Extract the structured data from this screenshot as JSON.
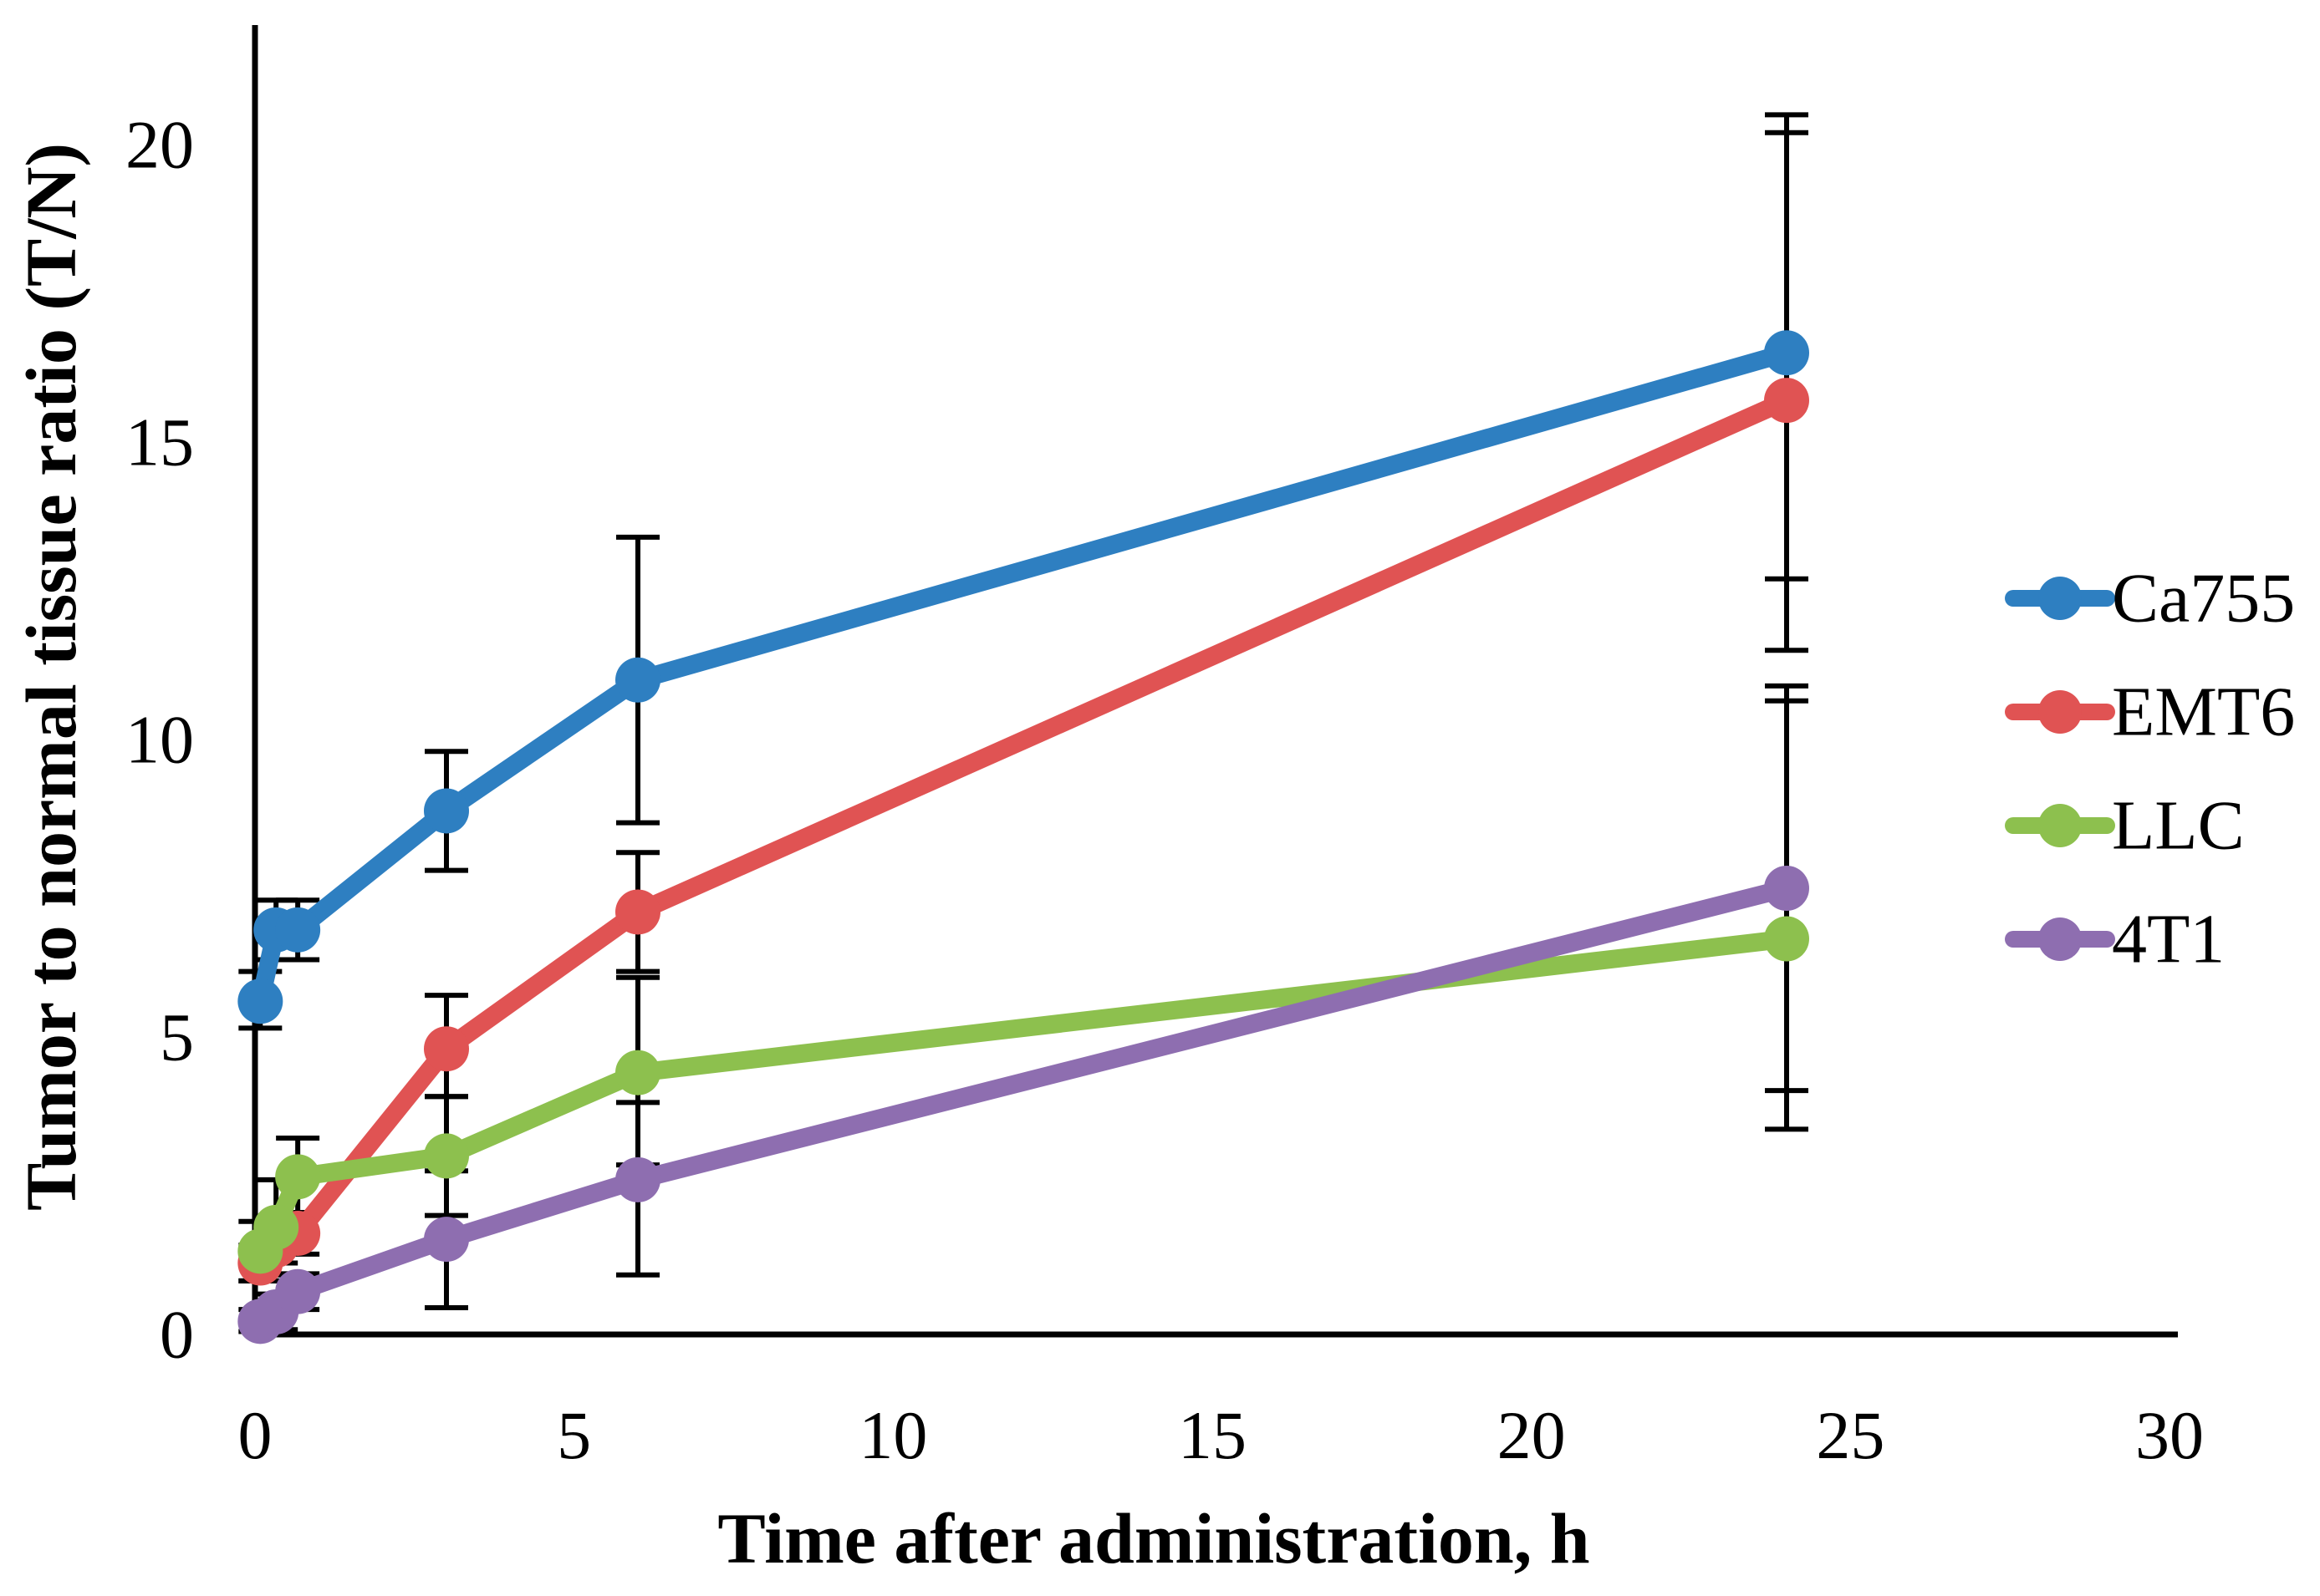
{
  "figure": {
    "background": "#ffffff",
    "axis_color": "#000000"
  },
  "chart_data": {
    "type": "line",
    "title": "",
    "xlabel": "Time after administration, h",
    "ylabel": "Tumor to normal tissue ratio (T/N)",
    "xlim": [
      0,
      30
    ],
    "ylim": [
      0,
      22
    ],
    "xticks": [
      0,
      5,
      10,
      15,
      20,
      25,
      30
    ],
    "yticks": [
      0,
      5,
      10,
      15,
      20
    ],
    "grid": false,
    "legend_position": "right",
    "x": [
      0.083,
      0.33,
      0.67,
      3,
      6,
      24
    ],
    "series": [
      {
        "name": "Ca755",
        "color": "#2E7FC1",
        "values": [
          5.6,
          6.8,
          6.8,
          8.8,
          11.0,
          16.5
        ],
        "err_up": [
          0.5,
          0.5,
          0.5,
          1.0,
          2.4,
          4.0
        ],
        "err_down": [
          0.45,
          0.5,
          0.5,
          1.0,
          2.4,
          3.8
        ]
      },
      {
        "name": "EMT6",
        "color": "#E05353",
        "values": [
          1.2,
          1.5,
          1.7,
          4.8,
          7.1,
          15.7
        ],
        "err_up": [
          0.3,
          0.3,
          0.35,
          0.9,
          1.0,
          4.5
        ],
        "err_down": [
          0.3,
          0.3,
          0.35,
          0.8,
          1.0,
          4.2
        ]
      },
      {
        "name": "LLC",
        "color": "#8DC04E",
        "values": [
          1.4,
          1.8,
          2.65,
          3.0,
          4.4,
          6.65
        ],
        "err_up": [
          0.5,
          0.8,
          0.65,
          1.0,
          1.6,
          4.0
        ],
        "err_down": [
          0.5,
          0.8,
          0.65,
          1.0,
          1.55,
          3.2
        ]
      },
      {
        "name": "4T1",
        "color": "#8E6EB0",
        "values": [
          0.22,
          0.38,
          0.72,
          1.6,
          2.6,
          7.5
        ],
        "err_up": [
          0.2,
          0.3,
          0.3,
          1.15,
          1.3,
          3.4
        ],
        "err_down": [
          0.17,
          0.3,
          0.3,
          1.15,
          1.6,
          3.4
        ]
      }
    ]
  }
}
